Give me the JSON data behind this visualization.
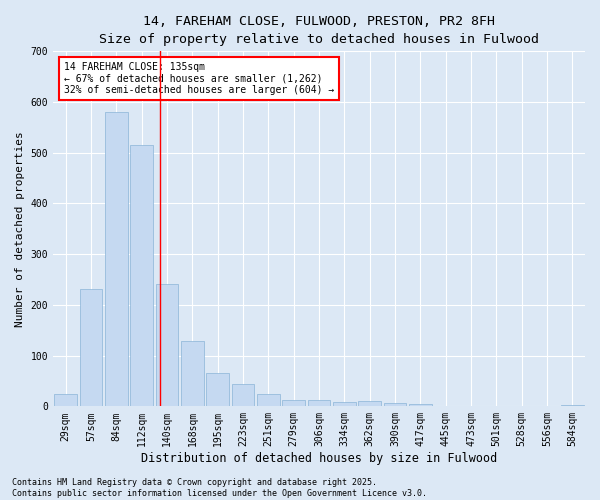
{
  "title_line1": "14, FAREHAM CLOSE, FULWOOD, PRESTON, PR2 8FH",
  "title_line2": "Size of property relative to detached houses in Fulwood",
  "xlabel": "Distribution of detached houses by size in Fulwood",
  "ylabel": "Number of detached properties",
  "categories": [
    "29sqm",
    "57sqm",
    "84sqm",
    "112sqm",
    "140sqm",
    "168sqm",
    "195sqm",
    "223sqm",
    "251sqm",
    "279sqm",
    "306sqm",
    "334sqm",
    "362sqm",
    "390sqm",
    "417sqm",
    "445sqm",
    "473sqm",
    "501sqm",
    "528sqm",
    "556sqm",
    "584sqm"
  ],
  "values": [
    25,
    232,
    580,
    515,
    242,
    128,
    65,
    45,
    25,
    13,
    12,
    8,
    10,
    6,
    5,
    0,
    0,
    0,
    0,
    0,
    2
  ],
  "bar_color": "#c5d9f1",
  "bar_edge_color": "#8ab4d8",
  "annotation_text": "14 FAREHAM CLOSE: 135sqm\n← 67% of detached houses are smaller (1,262)\n32% of semi-detached houses are larger (604) →",
  "annotation_box_color": "white",
  "annotation_box_edge_color": "red",
  "red_line_x": 3.73,
  "ylim": [
    0,
    700
  ],
  "yticks": [
    0,
    100,
    200,
    300,
    400,
    500,
    600,
    700
  ],
  "footnote_line1": "Contains HM Land Registry data © Crown copyright and database right 2025.",
  "footnote_line2": "Contains public sector information licensed under the Open Government Licence v3.0.",
  "background_color": "#dce8f5",
  "plot_background_color": "#dce8f5",
  "grid_color": "white",
  "title_fontsize": 9.5,
  "subtitle_fontsize": 8.5,
  "axis_label_fontsize": 8,
  "tick_fontsize": 7,
  "annotation_fontsize": 7,
  "footnote_fontsize": 6
}
